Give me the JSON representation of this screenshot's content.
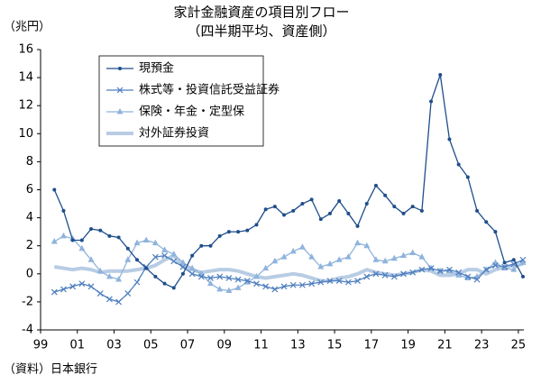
{
  "chart_data": {
    "type": "line",
    "title": "家計金融資産の項目別フロー",
    "subtitle": "（四半期平均、資産側）",
    "y_label": "（兆円）",
    "source": "（資料）日本銀行",
    "x": [
      1999.75,
      2000.25,
      2000.75,
      2001.25,
      2001.75,
      2002.25,
      2002.75,
      2003.25,
      2003.75,
      2004.25,
      2004.75,
      2005.25,
      2005.75,
      2006.25,
      2006.75,
      2007.25,
      2007.75,
      2008.25,
      2008.75,
      2009.25,
      2009.75,
      2010.25,
      2010.75,
      2011.25,
      2011.75,
      2012.25,
      2012.75,
      2013.25,
      2013.75,
      2014.25,
      2014.75,
      2015.25,
      2015.75,
      2016.25,
      2016.75,
      2017.25,
      2017.75,
      2018.25,
      2018.75,
      2019.25,
      2019.75,
      2020.25,
      2020.75,
      2021.25,
      2021.75,
      2022.25,
      2022.75,
      2023.25,
      2023.75,
      2024.25,
      2024.75,
      2025.25
    ],
    "xlim": [
      1999,
      2025.3
    ],
    "xticks": [
      {
        "value": 1999,
        "label": "99"
      },
      {
        "value": 2001,
        "label": "01"
      },
      {
        "value": 2003,
        "label": "03"
      },
      {
        "value": 2005,
        "label": "05"
      },
      {
        "value": 2007,
        "label": "07"
      },
      {
        "value": 2009,
        "label": "09"
      },
      {
        "value": 2011,
        "label": "11"
      },
      {
        "value": 2013,
        "label": "13"
      },
      {
        "value": 2015,
        "label": "15"
      },
      {
        "value": 2017,
        "label": "17"
      },
      {
        "value": 2019,
        "label": "19"
      },
      {
        "value": 2021,
        "label": "21"
      },
      {
        "value": 2023,
        "label": "23"
      },
      {
        "value": 2025,
        "label": "25"
      }
    ],
    "ylim": [
      -4,
      16
    ],
    "yticks": [
      -4,
      -2,
      0,
      2,
      4,
      6,
      8,
      10,
      12,
      14,
      16
    ],
    "grid": false,
    "legend": "upper-left",
    "series": [
      {
        "name": "現預金",
        "color": "#1f4e8c",
        "marker": "circle",
        "line_width": 1.3,
        "values": [
          6.0,
          4.5,
          2.4,
          2.4,
          3.2,
          3.1,
          2.7,
          2.6,
          1.8,
          1.0,
          0.4,
          -0.2,
          -0.7,
          -1.0,
          0.0,
          1.3,
          2.0,
          2.0,
          2.7,
          3.0,
          3.0,
          3.1,
          3.5,
          4.6,
          4.8,
          4.2,
          4.5,
          5.0,
          5.3,
          3.9,
          4.3,
          5.2,
          4.3,
          3.4,
          5.0,
          6.3,
          5.6,
          4.8,
          4.3,
          4.8,
          4.5,
          12.3,
          14.2,
          9.6,
          7.8,
          6.9,
          4.5,
          3.7,
          3.0,
          0.8,
          1.0,
          -0.2
        ]
      },
      {
        "name": "株式等・投資信託受益証券",
        "color": "#4f7fbf",
        "marker": "cross",
        "line_width": 1.3,
        "values": [
          -1.3,
          -1.1,
          -0.9,
          -0.7,
          -0.9,
          -1.4,
          -1.8,
          -2.0,
          -1.4,
          -0.6,
          0.5,
          1.2,
          1.3,
          0.9,
          0.5,
          0.0,
          -0.2,
          -0.3,
          -0.2,
          -0.3,
          -0.4,
          -0.5,
          -0.7,
          -0.9,
          -1.1,
          -0.9,
          -0.8,
          -0.8,
          -0.7,
          -0.6,
          -0.5,
          -0.5,
          -0.6,
          -0.5,
          -0.2,
          0.0,
          -0.1,
          -0.2,
          0.0,
          0.1,
          0.3,
          0.4,
          0.2,
          0.3,
          0.1,
          -0.2,
          -0.4,
          0.3,
          0.6,
          0.5,
          0.7,
          1.0
        ]
      },
      {
        "name": "保険・年金・定型保",
        "color": "#8fb4dc",
        "marker": "triangle",
        "line_width": 1.3,
        "values": [
          2.3,
          2.7,
          2.5,
          1.8,
          1.0,
          0.2,
          -0.2,
          -0.4,
          1.0,
          2.2,
          2.4,
          2.2,
          1.7,
          1.4,
          0.8,
          0.4,
          0.0,
          -0.7,
          -1.1,
          -1.2,
          -1.0,
          -0.6,
          -0.2,
          0.4,
          0.9,
          1.2,
          1.6,
          1.9,
          1.2,
          0.5,
          0.7,
          1.0,
          1.2,
          2.2,
          2.0,
          1.0,
          0.9,
          1.1,
          1.3,
          1.5,
          1.2,
          0.4,
          0.2,
          0.2,
          -0.1,
          -0.3,
          -0.2,
          0.3,
          0.8,
          0.4,
          0.3,
          0.8
        ]
      },
      {
        "name": "対外証券投資",
        "color": "#b8cce4",
        "marker": "none",
        "line_width": 4,
        "values": [
          0.5,
          0.4,
          0.3,
          0.4,
          0.3,
          0.1,
          0.2,
          0.2,
          0.2,
          0.3,
          0.4,
          0.6,
          1.0,
          1.3,
          0.5,
          0.3,
          0.1,
          0.2,
          0.3,
          0.3,
          0.2,
          0.0,
          -0.2,
          -0.3,
          -0.2,
          -0.1,
          0.0,
          -0.1,
          -0.3,
          -0.5,
          -0.5,
          -0.3,
          -0.2,
          0.0,
          0.3,
          0.1,
          0.0,
          -0.1,
          0.0,
          0.1,
          0.3,
          0.2,
          -0.1,
          -0.1,
          0.0,
          0.3,
          0.3,
          0.0,
          0.3,
          0.5,
          0.6,
          0.7
        ]
      }
    ]
  }
}
